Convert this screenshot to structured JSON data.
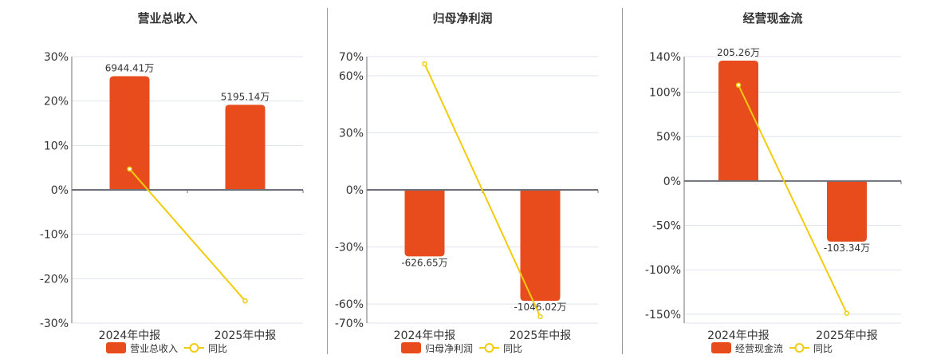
{
  "colors": {
    "bar": "#e84c1d",
    "line": "#f2cc0c",
    "grid": "#dfe3ef",
    "axis": "#6e7079",
    "text": "#333333"
  },
  "chart_data": [
    {
      "type": "bar+line",
      "title": "营业总收入",
      "categories": [
        "2024年中报",
        "2025年中报"
      ],
      "bar_series": {
        "name": "营业总收入",
        "values": [
          6944.41,
          5195.14
        ],
        "labels": [
          "6944.41万",
          "5195.14万"
        ]
      },
      "line_series": {
        "name": "同比",
        "values": [
          4.7,
          -25.0
        ]
      },
      "ylim": [
        -30,
        30
      ],
      "yticks": [
        30,
        20,
        10,
        0,
        -10,
        -20,
        -30
      ],
      "tick_labels": [
        "30%",
        "20%",
        "10%",
        "0%",
        "-10%",
        "-20%",
        "-30%"
      ],
      "bar_ylim": [
        -8140,
        8140
      ],
      "legend": "bottom"
    },
    {
      "type": "bar+line",
      "title": "归母净利润",
      "categories": [
        "2024年中报",
        "2025年中报"
      ],
      "bar_series": {
        "name": "归母净利润",
        "values": [
          -626.65,
          -1046.02
        ],
        "labels": [
          "-626.65万",
          "-1046.02万"
        ]
      },
      "line_series": {
        "name": "同比",
        "values": [
          66.2,
          -66.6
        ]
      },
      "ylim": [
        -70,
        70
      ],
      "yticks": [
        70,
        60,
        30,
        0,
        -30,
        -60,
        -70
      ],
      "tick_labels": [
        "70%",
        "60%",
        "30%",
        "0%",
        "-30%",
        "-60%",
        "-70%"
      ],
      "bar_ylim": [
        -1256,
        1256
      ],
      "legend": "bottom"
    },
    {
      "type": "bar+line",
      "title": "经营现金流",
      "categories": [
        "2024年中报",
        "2025年中报"
      ],
      "bar_series": {
        "name": "经营现金流",
        "values": [
          205.26,
          -103.34
        ],
        "labels": [
          "205.26万",
          "-103.34万"
        ]
      },
      "line_series": {
        "name": "同比",
        "values": [
          108,
          -149
        ]
      },
      "ylim": [
        -160,
        140
      ],
      "yticks": [
        140,
        100,
        50,
        0,
        -50,
        -100,
        -150
      ],
      "tick_labels": [
        "140%",
        "100%",
        "50%",
        "0%",
        "-50%",
        "-100%",
        "-150%"
      ],
      "bar_ylim": [
        -242,
        212
      ],
      "legend": "bottom"
    }
  ]
}
